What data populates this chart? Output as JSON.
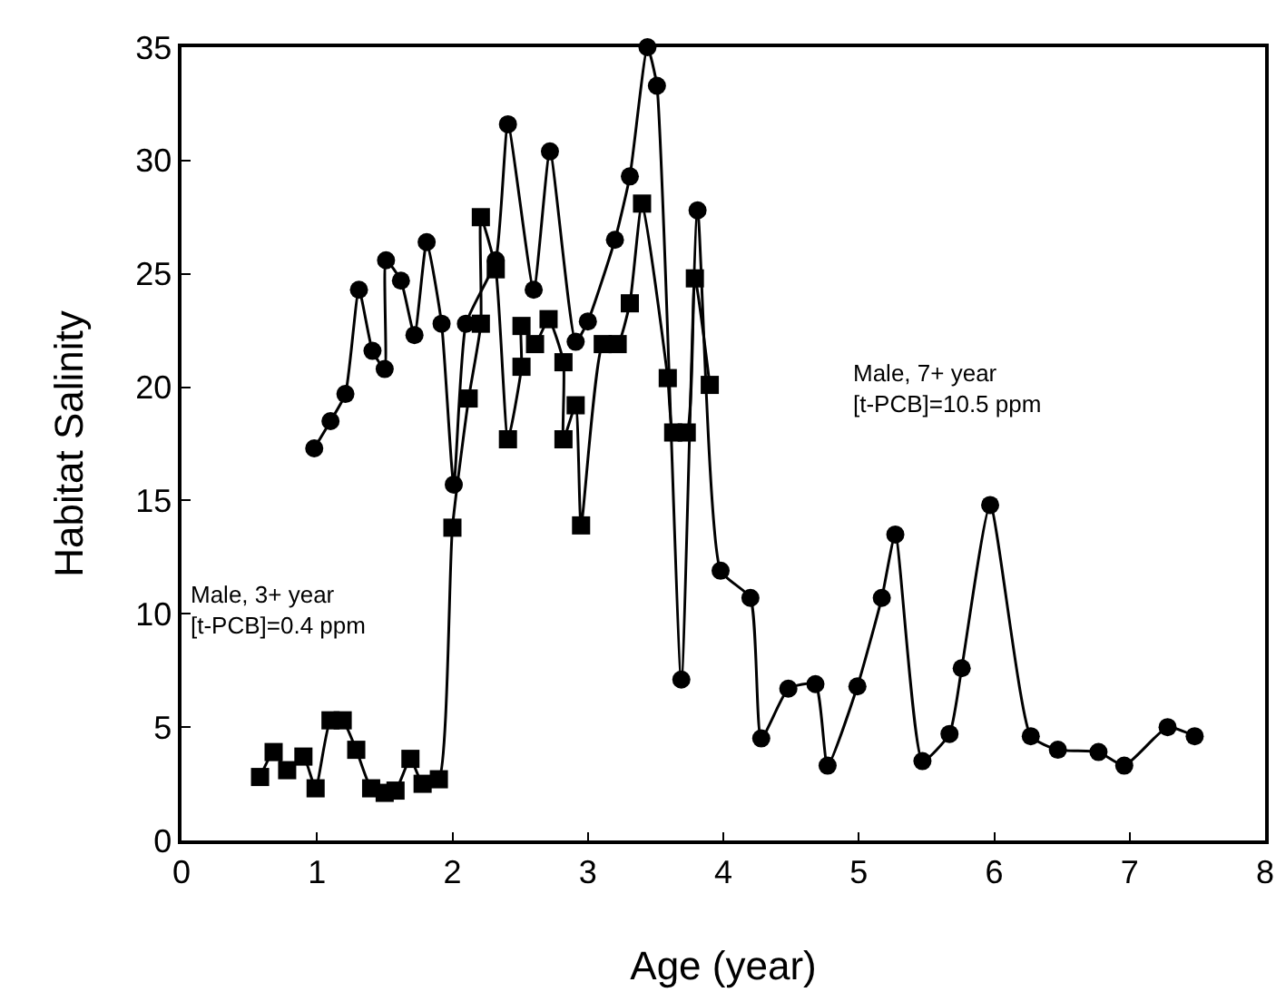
{
  "chart_data": {
    "type": "line",
    "xlabel": "Age (year)",
    "ylabel": "Habitat Salinity",
    "xlim": [
      0,
      8
    ],
    "xticks": [
      0,
      1,
      2,
      3,
      4,
      5,
      6,
      7,
      8
    ],
    "ylim": [
      0,
      35
    ],
    "yticks": [
      0,
      5,
      10,
      15,
      20,
      25,
      30,
      35
    ],
    "grid": false,
    "annotations": [
      "Male, 3+ year\n[t-PCB]=0.4 ppm",
      "Male, 7+ year\n[t-PCB]=10.5 ppm"
    ],
    "legend": false,
    "line_style": "solid",
    "series": [
      {
        "color": "#000000",
        "marker": "square",
        "x": [
          0.58,
          0.68,
          0.78,
          0.9,
          0.99,
          1.1,
          1.19,
          1.29,
          1.4,
          1.5,
          1.58,
          1.69,
          1.78,
          1.9,
          2.0,
          2.12,
          2.21,
          2.21,
          2.32,
          2.41,
          2.51,
          2.51,
          2.61,
          2.71,
          2.82,
          2.82,
          2.91,
          2.95,
          3.11,
          3.22,
          3.31,
          3.4,
          3.59,
          3.63,
          3.73,
          3.79,
          3.9
        ],
        "values": [
          2.8,
          3.9,
          3.1,
          3.7,
          2.3,
          5.3,
          5.3,
          4.0,
          2.3,
          2.1,
          2.2,
          3.6,
          2.5,
          2.7,
          13.8,
          19.5,
          22.8,
          27.5,
          25.2,
          17.7,
          20.9,
          22.7,
          21.9,
          23.0,
          21.1,
          17.7,
          19.2,
          13.9,
          21.9,
          21.9,
          23.7,
          28.1,
          20.4,
          18.0,
          18.0,
          24.8,
          20.1
        ]
      },
      {
        "color": "#000000",
        "marker": "circle",
        "x": [
          0.98,
          1.1,
          1.21,
          1.31,
          1.41,
          1.5,
          1.51,
          1.62,
          1.72,
          1.81,
          1.92,
          2.01,
          2.1,
          2.32,
          2.41,
          2.6,
          2.72,
          2.91,
          3.0,
          3.2,
          3.31,
          3.44,
          3.51,
          3.69,
          3.81,
          3.98,
          4.2,
          4.28,
          4.48,
          4.68,
          4.77,
          4.99,
          5.17,
          5.27,
          5.47,
          5.67,
          5.76,
          5.97,
          6.27,
          6.47,
          6.77,
          6.96,
          7.28,
          7.48
        ],
        "values": [
          17.3,
          18.5,
          19.7,
          24.3,
          21.6,
          20.8,
          25.6,
          24.7,
          22.3,
          26.4,
          22.8,
          15.7,
          22.8,
          25.6,
          31.6,
          24.3,
          30.4,
          22.0,
          22.9,
          26.5,
          29.3,
          35,
          33.3,
          7.1,
          27.8,
          11.9,
          10.7,
          4.5,
          6.7,
          6.9,
          3.3,
          6.8,
          10.7,
          13.5,
          3.5,
          4.7,
          7.6,
          14.8,
          4.6,
          4.0,
          3.9,
          3.3,
          5.0,
          4.6
        ]
      }
    ]
  }
}
